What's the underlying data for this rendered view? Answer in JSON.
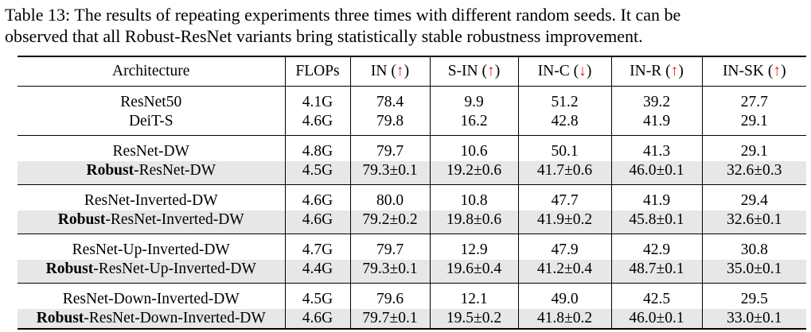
{
  "caption": {
    "line1": "Table 13: The results of repeating experiments three times with different random seeds. It can be",
    "line2": "observed that all Robust-ResNet variants bring statistically stable robustness improvement."
  },
  "header": {
    "architecture": "Architecture",
    "flops": "FLOPs",
    "cols": [
      {
        "name": "IN",
        "arrow": "↑"
      },
      {
        "name": "S-IN",
        "arrow": "↑"
      },
      {
        "name": "IN-C",
        "arrow": "↓"
      },
      {
        "name": "IN-R",
        "arrow": "↑"
      },
      {
        "name": "IN-SK",
        "arrow": "↑"
      }
    ]
  },
  "arrow_color": "#e8141c",
  "highlight_color": "#e7e7e7",
  "groups": [
    {
      "rows": [
        {
          "bold": "",
          "name": "ResNet50",
          "flops": "4.1G",
          "values": [
            "78.4",
            "9.9",
            "51.2",
            "39.2",
            "27.7"
          ],
          "shaded": false
        },
        {
          "bold": "",
          "name": "DeiT-S",
          "flops": "4.6G",
          "values": [
            "79.8",
            "16.2",
            "42.8",
            "41.9",
            "29.1"
          ],
          "shaded": false
        }
      ]
    },
    {
      "rows": [
        {
          "bold": "",
          "name": "ResNet-DW",
          "flops": "4.8G",
          "values": [
            "79.7",
            "10.6",
            "50.1",
            "41.3",
            "29.1"
          ],
          "shaded": false
        },
        {
          "bold": "Robust",
          "name": "-ResNet-DW",
          "flops": "4.5G",
          "values": [
            "79.3±0.1",
            "19.2±0.6",
            "41.7±0.6",
            "46.0±0.1",
            "32.6±0.3"
          ],
          "shaded": true
        }
      ]
    },
    {
      "rows": [
        {
          "bold": "",
          "name": "ResNet-Inverted-DW",
          "flops": "4.6G",
          "values": [
            "80.0",
            "10.8",
            "47.7",
            "41.9",
            "29.4"
          ],
          "shaded": false
        },
        {
          "bold": "Robust",
          "name": "-ResNet-Inverted-DW",
          "flops": "4.6G",
          "values": [
            "79.2±0.2",
            "19.8±0.6",
            "41.9±0.2",
            "45.8±0.1",
            "32.6±0.1"
          ],
          "shaded": true
        }
      ]
    },
    {
      "rows": [
        {
          "bold": "",
          "name": "ResNet-Up-Inverted-DW",
          "flops": "4.7G",
          "values": [
            "79.7",
            "12.9",
            "47.9",
            "42.9",
            "30.8"
          ],
          "shaded": false
        },
        {
          "bold": "Robust",
          "name": "-ResNet-Up-Inverted-DW",
          "flops": "4.4G",
          "values": [
            "79.3±0.1",
            "19.6±0.4",
            "41.2±0.4",
            "48.7±0.1",
            "35.0±0.1"
          ],
          "shaded": true
        }
      ]
    },
    {
      "rows": [
        {
          "bold": "",
          "name": "ResNet-Down-Inverted-DW",
          "flops": "4.5G",
          "values": [
            "79.6",
            "12.1",
            "49.0",
            "42.5",
            "29.5"
          ],
          "shaded": false
        },
        {
          "bold": "Robust",
          "name": "-ResNet-Down-Inverted-DW",
          "flops": "4.6G",
          "values": [
            "79.7±0.1",
            "19.5±0.2",
            "41.8±0.2",
            "46.0±0.1",
            "33.0±0.1"
          ],
          "shaded": true
        }
      ]
    }
  ]
}
